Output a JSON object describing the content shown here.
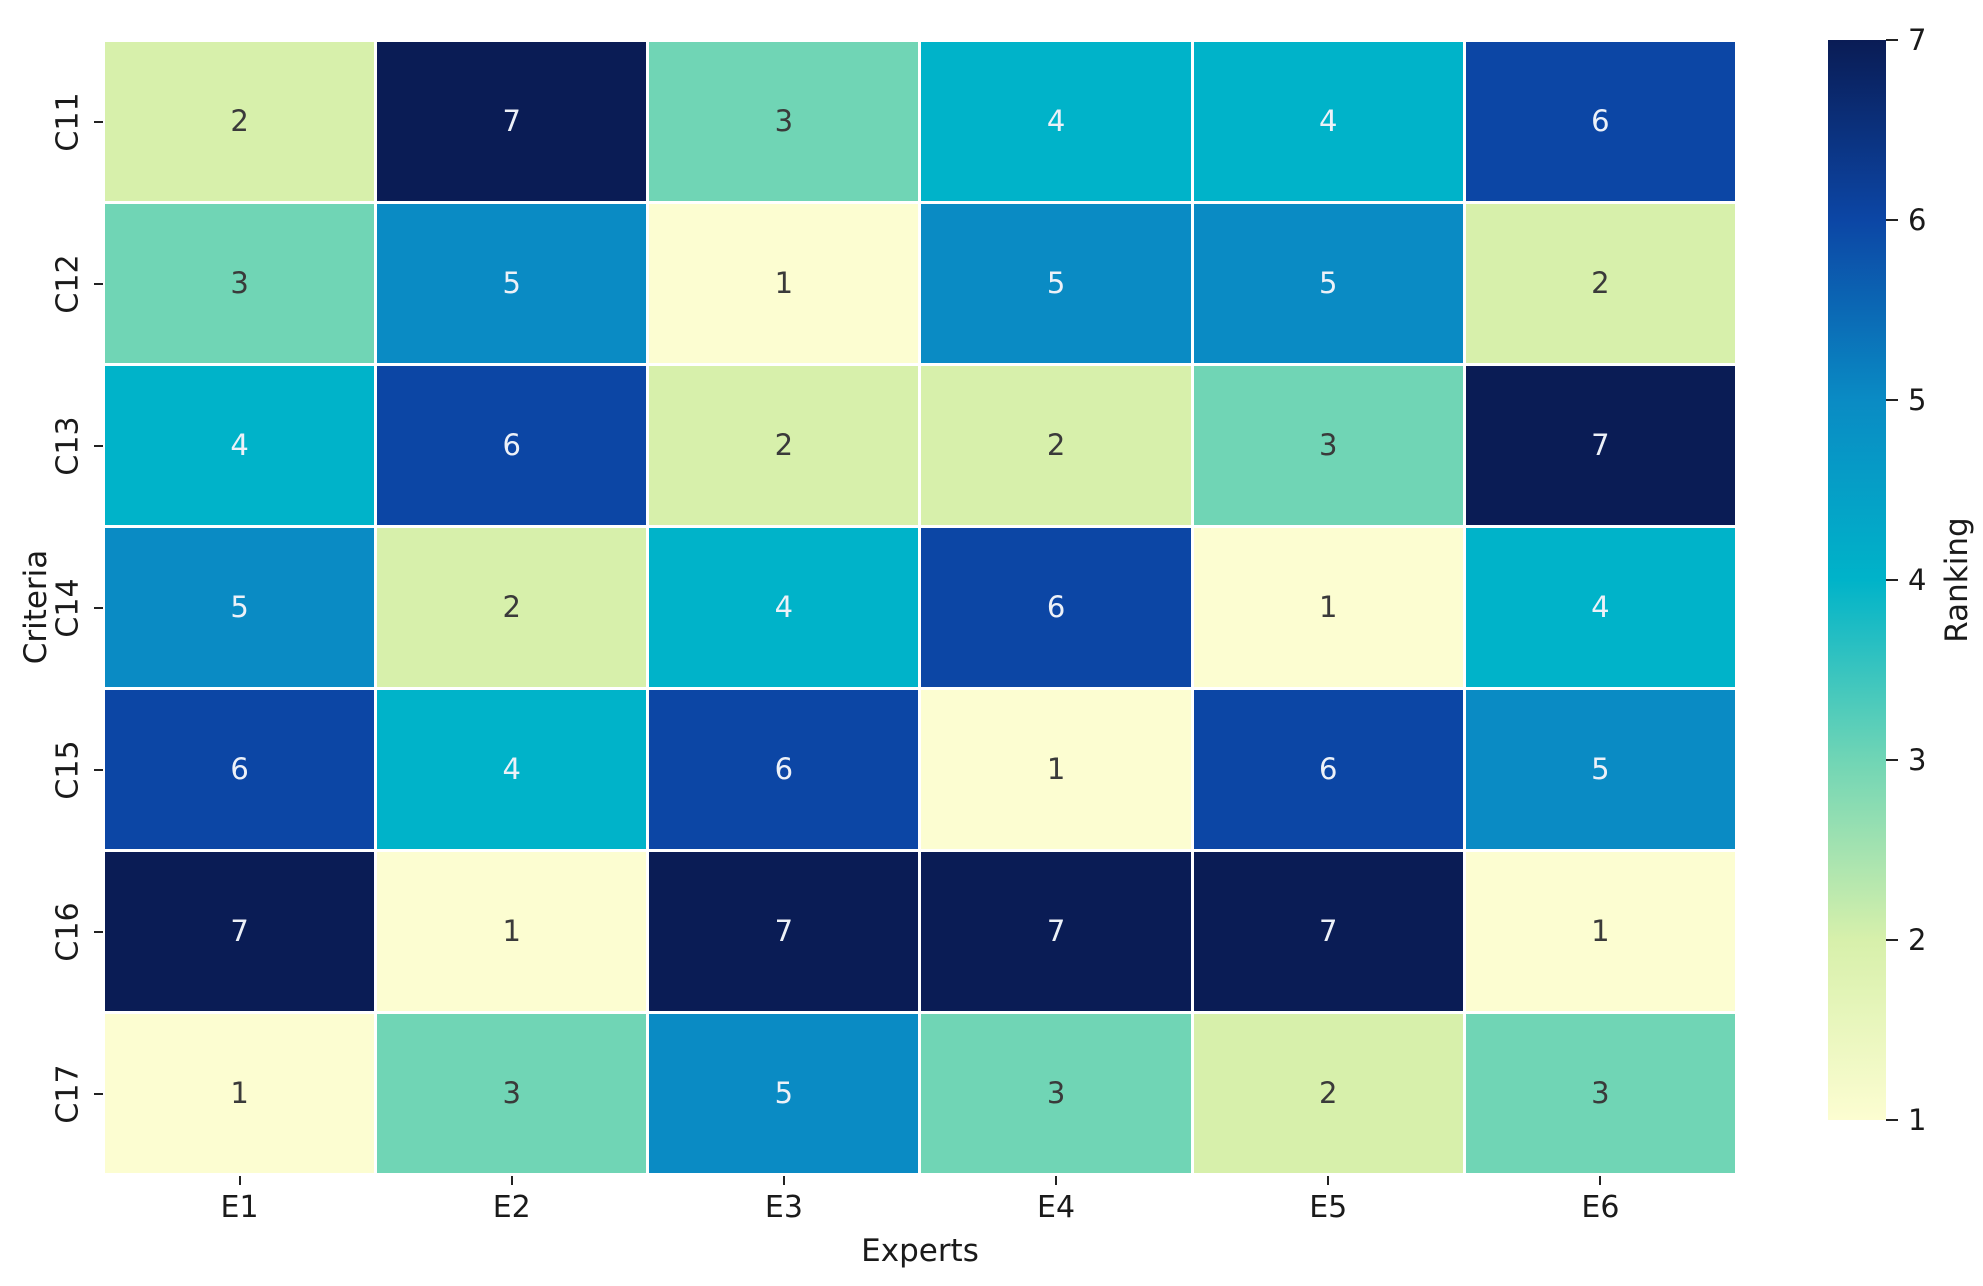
{
  "chart_data": {
    "type": "heatmap",
    "title": "",
    "xlabel": "Experts",
    "ylabel": "Criteria",
    "x_categories": [
      "E1",
      "E2",
      "E3",
      "E4",
      "E5",
      "E6"
    ],
    "y_categories": [
      "C11",
      "C12",
      "C13",
      "C14",
      "C15",
      "C16",
      "C17"
    ],
    "values": [
      [
        2,
        7,
        3,
        4,
        4,
        6
      ],
      [
        3,
        5,
        1,
        5,
        5,
        2
      ],
      [
        4,
        6,
        2,
        2,
        3,
        7
      ],
      [
        5,
        2,
        4,
        6,
        1,
        4
      ],
      [
        6,
        4,
        6,
        1,
        6,
        5
      ],
      [
        7,
        1,
        7,
        7,
        7,
        1
      ],
      [
        1,
        3,
        5,
        3,
        2,
        3
      ]
    ],
    "colorbar": {
      "label": "Ranking",
      "ticks": [
        7,
        6,
        5,
        4,
        3,
        2,
        1
      ],
      "vmin": 1,
      "vmax": 7
    },
    "colormap_name": "YlGnBu",
    "value_colors": {
      "1": "#fcfdd1",
      "2": "#d7f0ab",
      "3": "#70d5b5",
      "4": "#00b3c9",
      "5": "#0a8bc4",
      "6": "#0c46a5",
      "7": "#0a1c55"
    },
    "annot_dark_text_values": [
      1,
      2,
      3
    ],
    "annot_light_text_values": [
      4,
      5,
      6,
      7
    ],
    "grid_gap_color": "#ffffff",
    "legend_position": "right"
  }
}
